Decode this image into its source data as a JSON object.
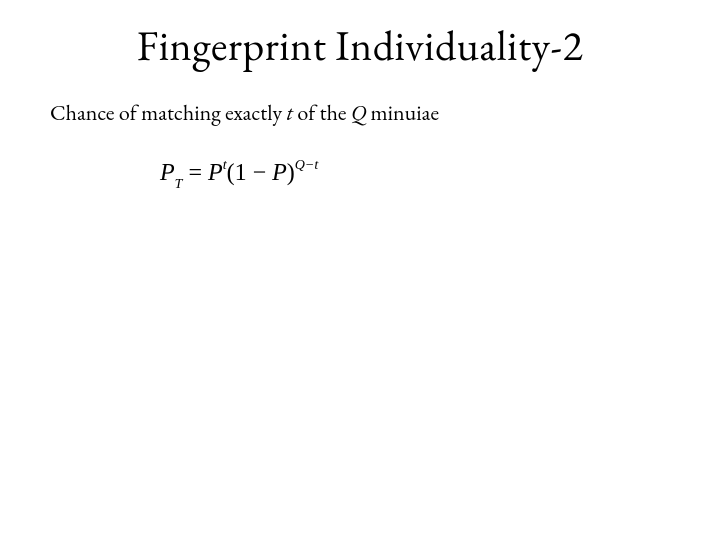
{
  "title": "Fingerprint Individuality-2",
  "body": {
    "prefix": "Chance of matching exactly ",
    "t": "t",
    "mid": " of the ",
    "Q": "Q",
    "suffix": " minuiae"
  },
  "formula": {
    "P": "P",
    "subT": "T",
    "eq": " = ",
    "P2": "P",
    "sup_t": "t",
    "lpar": "(1 − ",
    "P3": "P",
    "rpar": ")",
    "sup_Qminus_t": "Q−t"
  },
  "style": {
    "background_color": "#ffffff",
    "text_color": "#000000",
    "title_fontsize": 42,
    "body_fontsize": 22,
    "formula_fontsize": 24,
    "font_family_title": "Garamond",
    "font_family_formula": "Times New Roman"
  }
}
